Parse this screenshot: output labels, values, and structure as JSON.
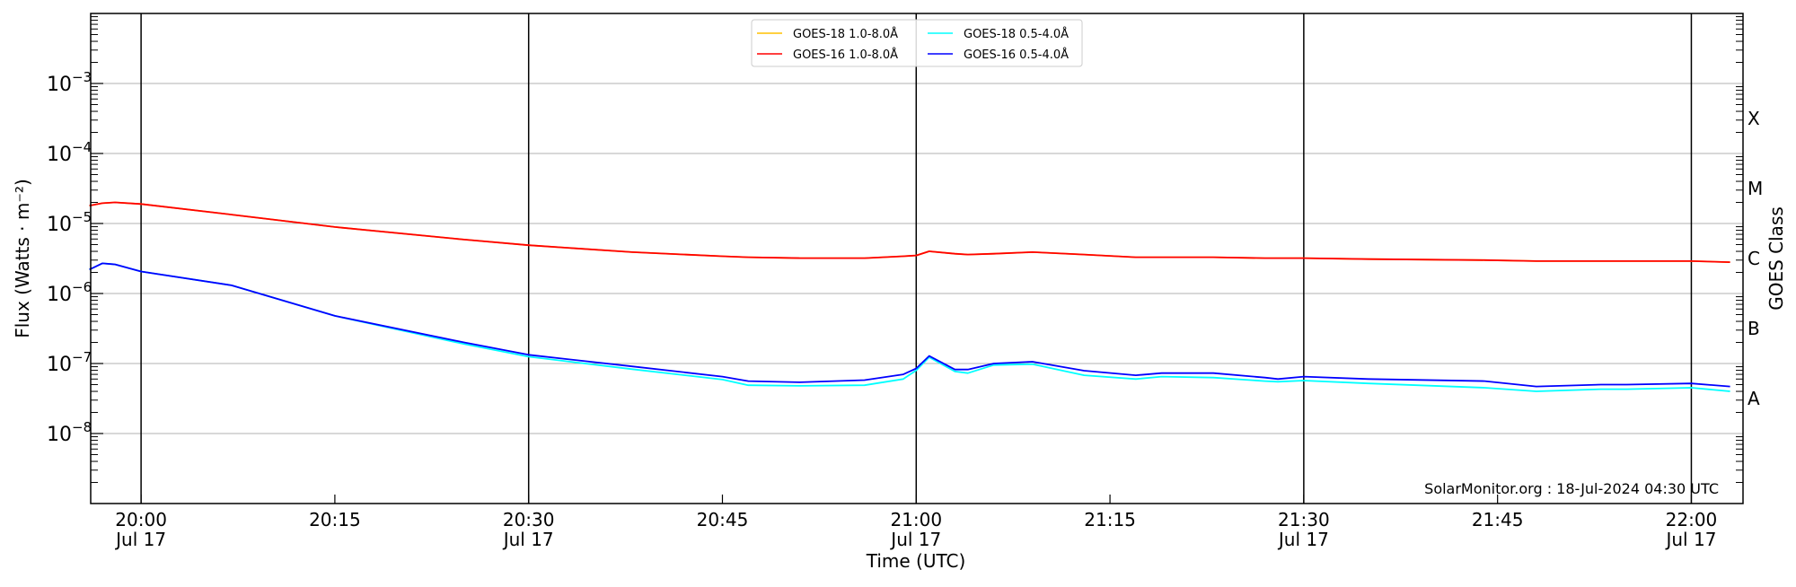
{
  "chart_data": {
    "type": "line",
    "title": "",
    "xlabel": "Time (UTC)",
    "ylabel": "Flux (Watts · m⁻²)",
    "right_label": "GOES Class",
    "yscale": "log",
    "ylim": [
      1e-09,
      0.01
    ],
    "xlim": [
      "19:56",
      "22:04"
    ],
    "grid": "horizontal at each decade; vertical lines at every half hour",
    "legend_placement": "top-center",
    "y_ticks": [
      {
        "value": 0.001,
        "base": "10",
        "exp": "−3"
      },
      {
        "value": 0.0001,
        "base": "10",
        "exp": "−4"
      },
      {
        "value": 1e-05,
        "base": "10",
        "exp": "−5"
      },
      {
        "value": 1e-06,
        "base": "10",
        "exp": "−6"
      },
      {
        "value": 1e-07,
        "base": "10",
        "exp": "−7"
      },
      {
        "value": 1e-08,
        "base": "10",
        "exp": "−8"
      }
    ],
    "x_ticks": [
      {
        "time": "20:00",
        "label": "20:00",
        "date": "Jul 17"
      },
      {
        "time": "20:15",
        "label": "20:15",
        "date": ""
      },
      {
        "time": "20:30",
        "label": "20:30",
        "date": "Jul 17"
      },
      {
        "time": "20:45",
        "label": "20:45",
        "date": ""
      },
      {
        "time": "21:00",
        "label": "21:00",
        "date": "Jul 17"
      },
      {
        "time": "21:15",
        "label": "21:15",
        "date": ""
      },
      {
        "time": "21:30",
        "label": "21:30",
        "date": "Jul 17"
      },
      {
        "time": "21:45",
        "label": "21:45",
        "date": ""
      },
      {
        "time": "22:00",
        "label": "22:00",
        "date": "Jul 17"
      }
    ],
    "goes_classes": [
      {
        "label": "X",
        "log": -3.5
      },
      {
        "label": "M",
        "log": -4.5
      },
      {
        "label": "C",
        "log": -5.5
      },
      {
        "label": "B",
        "log": -6.5
      },
      {
        "label": "A",
        "log": -7.5
      }
    ],
    "x": [
      "19:56",
      "19:57",
      "19:58",
      "20:00",
      "20:07",
      "20:15",
      "20:25",
      "20:30",
      "20:38",
      "20:45",
      "20:47",
      "20:51",
      "20:56",
      "20:59",
      "21:00",
      "21:01",
      "21:03",
      "21:04",
      "21:06",
      "21:09",
      "21:13",
      "21:17",
      "21:19",
      "21:23",
      "21:27",
      "21:28",
      "21:30",
      "21:35",
      "21:44",
      "21:48",
      "21:53",
      "21:55",
      "22:00",
      "22:03"
    ],
    "series": [
      {
        "name": "GOES-18 1.0-8.0Å",
        "color": "#ffc000",
        "values": [
          1.8e-05,
          1.95e-05,
          2e-05,
          1.9e-05,
          1.34e-05,
          8.9e-06,
          5.9e-06,
          4.9e-06,
          3.9e-06,
          3.4e-06,
          3.3e-06,
          3.2e-06,
          3.2e-06,
          3.4e-06,
          3.5e-06,
          4e-06,
          3.7e-06,
          3.6e-06,
          3.7e-06,
          3.9e-06,
          3.6e-06,
          3.3e-06,
          3.3e-06,
          3.3e-06,
          3.2e-06,
          3.2e-06,
          3.2e-06,
          3.1e-06,
          3e-06,
          2.9e-06,
          2.9e-06,
          2.9e-06,
          2.9e-06,
          2.8e-06
        ]
      },
      {
        "name": "GOES-16 1.0-8.0Å",
        "color": "#ff0000",
        "values": [
          1.8e-05,
          1.95e-05,
          2e-05,
          1.9e-05,
          1.34e-05,
          8.9e-06,
          5.9e-06,
          4.9e-06,
          3.9e-06,
          3.4e-06,
          3.3e-06,
          3.2e-06,
          3.2e-06,
          3.4e-06,
          3.5e-06,
          4e-06,
          3.7e-06,
          3.6e-06,
          3.7e-06,
          3.9e-06,
          3.6e-06,
          3.3e-06,
          3.3e-06,
          3.3e-06,
          3.2e-06,
          3.2e-06,
          3.2e-06,
          3.1e-06,
          3e-06,
          2.9e-06,
          2.9e-06,
          2.9e-06,
          2.9e-06,
          2.8e-06
        ]
      },
      {
        "name": "GOES-18 0.5-4.0Å",
        "color": "#00ffff",
        "values": [
          2.2e-06,
          2.7e-06,
          2.6e-06,
          2.06e-06,
          1.31e-06,
          4.8e-07,
          1.9e-07,
          1.25e-07,
          8.3e-08,
          5.9e-08,
          4.9e-08,
          4.8e-08,
          4.9e-08,
          6e-08,
          8e-08,
          1.23e-07,
          7.7e-08,
          7.3e-08,
          9.5e-08,
          9.8e-08,
          6.8e-08,
          6e-08,
          6.5e-08,
          6.3e-08,
          5.6e-08,
          5.5e-08,
          5.7e-08,
          5.2e-08,
          4.5e-08,
          4e-08,
          4.3e-08,
          4.3e-08,
          4.5e-08,
          4e-08
        ]
      },
      {
        "name": "GOES-16 0.5-4.0Å",
        "color": "#0000ff",
        "values": [
          2.2e-06,
          2.7e-06,
          2.6e-06,
          2.06e-06,
          1.31e-06,
          4.8e-07,
          2e-07,
          1.33e-07,
          9.1e-08,
          6.5e-08,
          5.6e-08,
          5.4e-08,
          5.8e-08,
          7e-08,
          8.5e-08,
          1.28e-07,
          8.2e-08,
          8.2e-08,
          1e-07,
          1.06e-07,
          7.9e-08,
          6.8e-08,
          7.3e-08,
          7.3e-08,
          6.3e-08,
          6e-08,
          6.5e-08,
          6e-08,
          5.6e-08,
          4.7e-08,
          5e-08,
          5e-08,
          5.2e-08,
          4.7e-08
        ]
      }
    ],
    "annotation": "SolarMonitor.org : 18-Jul-2024 04:30 UTC"
  }
}
